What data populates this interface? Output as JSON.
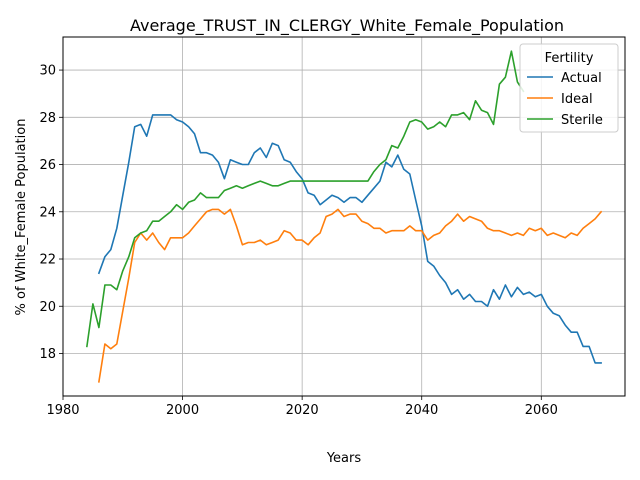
{
  "chart_data": {
    "type": "line",
    "title": "Average_TRUST_IN_CLERGY_White_Female_Population",
    "xlabel": "Years",
    "ylabel": "% of White_Female Population",
    "xlim": [
      1980,
      2074
    ],
    "ylim": [
      16.2,
      31.4
    ],
    "x_ticks": [
      1980,
      2000,
      2020,
      2040,
      2060
    ],
    "y_ticks": [
      18,
      20,
      22,
      24,
      26,
      28,
      30
    ],
    "grid": true,
    "legend": {
      "title": "Fertility",
      "position": "top-right"
    },
    "series": [
      {
        "name": "Actual",
        "color": "#1f77b4",
        "x": [
          1986,
          1987,
          1988,
          1989,
          1990,
          1991,
          1992,
          1993,
          1994,
          1995,
          1996,
          1997,
          1998,
          1999,
          2000,
          2001,
          2002,
          2003,
          2004,
          2005,
          2006,
          2007,
          2008,
          2009,
          2010,
          2011,
          2012,
          2013,
          2014,
          2015,
          2016,
          2017,
          2018,
          2019,
          2020,
          2021,
          2022,
          2023,
          2024,
          2025,
          2026,
          2027,
          2028,
          2029,
          2030,
          2031,
          2032,
          2033,
          2034,
          2035,
          2036,
          2037,
          2038,
          2039,
          2040,
          2041,
          2042,
          2043,
          2044,
          2045,
          2046,
          2047,
          2048,
          2049,
          2050,
          2051,
          2052,
          2053,
          2054,
          2055,
          2056,
          2057,
          2058,
          2059,
          2060,
          2061,
          2062,
          2063,
          2064,
          2065,
          2066,
          2067,
          2068,
          2069,
          2070
        ],
        "y": [
          21.4,
          22.1,
          22.4,
          23.3,
          24.7,
          26.1,
          27.6,
          27.7,
          27.2,
          28.1,
          28.1,
          28.1,
          28.1,
          27.9,
          27.8,
          27.6,
          27.3,
          26.5,
          26.5,
          26.4,
          26.1,
          25.4,
          26.2,
          26.1,
          26.0,
          26.0,
          26.5,
          26.7,
          26.3,
          26.9,
          26.8,
          26.2,
          26.1,
          25.7,
          25.4,
          24.8,
          24.7,
          24.3,
          24.5,
          24.7,
          24.6,
          24.4,
          24.6,
          24.6,
          24.4,
          24.7,
          25.0,
          25.3,
          26.1,
          25.9,
          26.4,
          25.8,
          25.6,
          24.5,
          23.4,
          21.9,
          21.7,
          21.3,
          21.0,
          20.5,
          20.7,
          20.3,
          20.5,
          20.2,
          20.2,
          20.0,
          20.7,
          20.3,
          20.9,
          20.4,
          20.8,
          20.5,
          20.6,
          20.4,
          20.5,
          20.0,
          19.7,
          19.6,
          19.2,
          18.9,
          18.9,
          18.3,
          18.3,
          17.6,
          17.6
        ]
      },
      {
        "name": "Ideal",
        "color": "#ff7f0e",
        "x": [
          1986,
          1987,
          1988,
          1989,
          1990,
          1991,
          1992,
          1993,
          1994,
          1995,
          1996,
          1997,
          1998,
          1999,
          2000,
          2001,
          2002,
          2003,
          2004,
          2005,
          2006,
          2007,
          2008,
          2009,
          2010,
          2011,
          2012,
          2013,
          2014,
          2015,
          2016,
          2017,
          2018,
          2019,
          2020,
          2021,
          2022,
          2023,
          2024,
          2025,
          2026,
          2027,
          2028,
          2029,
          2030,
          2031,
          2032,
          2033,
          2034,
          2035,
          2036,
          2037,
          2038,
          2039,
          2040,
          2041,
          2042,
          2043,
          2044,
          2045,
          2046,
          2047,
          2048,
          2049,
          2050,
          2051,
          2052,
          2053,
          2054,
          2055,
          2056,
          2057,
          2058,
          2059,
          2060,
          2061,
          2062,
          2063,
          2064,
          2065,
          2066,
          2067,
          2068,
          2069,
          2070
        ],
        "y": [
          16.8,
          18.4,
          18.2,
          18.4,
          19.8,
          21.2,
          22.7,
          23.1,
          22.8,
          23.1,
          22.7,
          22.4,
          22.9,
          22.9,
          22.9,
          23.1,
          23.4,
          23.7,
          24.0,
          24.1,
          24.1,
          23.9,
          24.1,
          23.4,
          22.6,
          22.7,
          22.7,
          22.8,
          22.6,
          22.7,
          22.8,
          23.2,
          23.1,
          22.8,
          22.8,
          22.6,
          22.9,
          23.1,
          23.8,
          23.9,
          24.1,
          23.8,
          23.9,
          23.9,
          23.6,
          23.5,
          23.3,
          23.3,
          23.1,
          23.2,
          23.2,
          23.2,
          23.4,
          23.2,
          23.2,
          22.8,
          23.0,
          23.1,
          23.4,
          23.6,
          23.9,
          23.6,
          23.8,
          23.7,
          23.6,
          23.3,
          23.2,
          23.2,
          23.1,
          23.0,
          23.1,
          23.0,
          23.3,
          23.2,
          23.3,
          23.0,
          23.1,
          23.0,
          22.9,
          23.1,
          23.0,
          23.3,
          23.5,
          23.7,
          24.0
        ]
      },
      {
        "name": "Sterile",
        "color": "#2ca02c",
        "x": [
          1984,
          1985,
          1986,
          1987,
          1988,
          1989,
          1990,
          1991,
          1992,
          1993,
          1994,
          1995,
          1996,
          1997,
          1998,
          1999,
          2000,
          2001,
          2002,
          2003,
          2004,
          2005,
          2006,
          2007,
          2008,
          2009,
          2010,
          2011,
          2012,
          2013,
          2014,
          2015,
          2016,
          2017,
          2018,
          2019,
          2020,
          2021,
          2022,
          2023,
          2024,
          2025,
          2026,
          2027,
          2028,
          2029,
          2030,
          2031,
          2032,
          2033,
          2034,
          2035,
          2036,
          2037,
          2038,
          2039,
          2040,
          2041,
          2042,
          2043,
          2044,
          2045,
          2046,
          2047,
          2048,
          2049,
          2050,
          2051,
          2052,
          2053,
          2054,
          2055,
          2056,
          2057
        ],
        "y": [
          18.3,
          20.1,
          19.1,
          20.9,
          20.9,
          20.7,
          21.5,
          22.1,
          22.9,
          23.1,
          23.2,
          23.6,
          23.6,
          23.8,
          24.0,
          24.3,
          24.1,
          24.4,
          24.5,
          24.8,
          24.6,
          24.6,
          24.6,
          24.9,
          25.0,
          25.1,
          25.0,
          25.1,
          25.2,
          25.3,
          25.2,
          25.1,
          25.1,
          25.2,
          25.3,
          25.3,
          25.3,
          25.3,
          25.3,
          25.3,
          25.3,
          25.3,
          25.3,
          25.3,
          25.3,
          25.3,
          25.3,
          25.3,
          25.7,
          26.0,
          26.2,
          26.8,
          26.7,
          27.2,
          27.8,
          27.9,
          27.8,
          27.5,
          27.6,
          27.8,
          27.6,
          28.1,
          28.1,
          28.2,
          27.9,
          28.7,
          28.3,
          28.2,
          27.7,
          29.4,
          29.7,
          30.8,
          29.5,
          29.1
        ]
      }
    ]
  }
}
